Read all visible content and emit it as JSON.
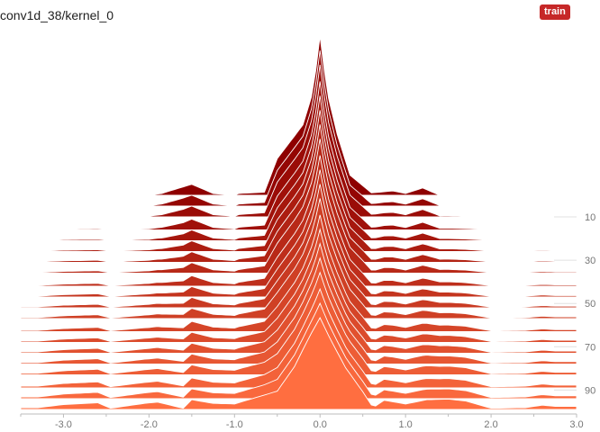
{
  "card": {
    "title": "conv1d_38/kernel_0",
    "run_tag": "train",
    "run_color": "#c62828"
  },
  "chart_data": {
    "type": "area",
    "mode": "offset",
    "title": "conv1d_38/kernel_0",
    "xlim": [
      -3.5,
      3.0
    ],
    "x_ticks": [
      -3.0,
      -2.0,
      -1.0,
      0.0,
      1.0,
      2.0,
      3.0
    ],
    "x_tick_labels": [
      "-3.0",
      "-2.0",
      "-1.0",
      "0.0",
      "1.0",
      "2.0",
      "3.0"
    ],
    "step_range": [
      0,
      99
    ],
    "step_ticks": [
      10,
      30,
      50,
      70,
      90
    ],
    "step_tick_labels": [
      "10",
      "30",
      "50",
      "70",
      "90"
    ],
    "color_oldest": "#8e0000",
    "color_newest": "#ff6e40",
    "first_step": {
      "step": 0,
      "bins": [
        [
          -3.5,
          0
        ],
        [
          -3.0,
          0
        ],
        [
          -2.5,
          0
        ],
        [
          -2.0,
          0
        ],
        [
          -1.85,
          0.3
        ],
        [
          -1.5,
          1.8
        ],
        [
          -1.25,
          0.3
        ],
        [
          -1.0,
          0
        ],
        [
          -0.95,
          0.3
        ],
        [
          -0.65,
          0.5
        ],
        [
          -0.5,
          6.0
        ],
        [
          -0.2,
          11.5
        ],
        [
          -0.08,
          17.0
        ],
        [
          0.0,
          26.0
        ],
        [
          0.08,
          17.0
        ],
        [
          0.2,
          10.0
        ],
        [
          0.35,
          3.3
        ],
        [
          0.6,
          0.4
        ],
        [
          0.85,
          0.7
        ],
        [
          1.0,
          0.3
        ],
        [
          1.2,
          1.2
        ],
        [
          1.4,
          0
        ],
        [
          2.0,
          0
        ],
        [
          3.0,
          0
        ]
      ]
    },
    "last_step": {
      "step": 99,
      "bins": [
        [
          -3.3,
          0.3
        ],
        [
          -3.0,
          0.8
        ],
        [
          -2.6,
          1.1
        ],
        [
          -2.45,
          0.2
        ],
        [
          -2.05,
          1.0
        ],
        [
          -1.9,
          1.2
        ],
        [
          -1.6,
          0.2
        ],
        [
          -1.5,
          1.6
        ],
        [
          -1.25,
          1.0
        ],
        [
          -1.0,
          0.9
        ],
        [
          -0.5,
          3.0
        ],
        [
          -0.3,
          7.0
        ],
        [
          -0.12,
          12.0
        ],
        [
          0.0,
          15.0
        ],
        [
          0.12,
          11.5
        ],
        [
          0.3,
          6.8
        ],
        [
          0.5,
          2.9
        ],
        [
          0.62,
          0.3
        ],
        [
          0.75,
          1.5
        ],
        [
          1.0,
          0.9
        ],
        [
          1.25,
          1.6
        ],
        [
          1.5,
          1.7
        ],
        [
          1.7,
          1.4
        ],
        [
          2.0,
          0.2
        ],
        [
          2.4,
          0.3
        ],
        [
          2.6,
          0.7
        ],
        [
          2.75,
          0.5
        ]
      ]
    },
    "num_slices": 20
  }
}
